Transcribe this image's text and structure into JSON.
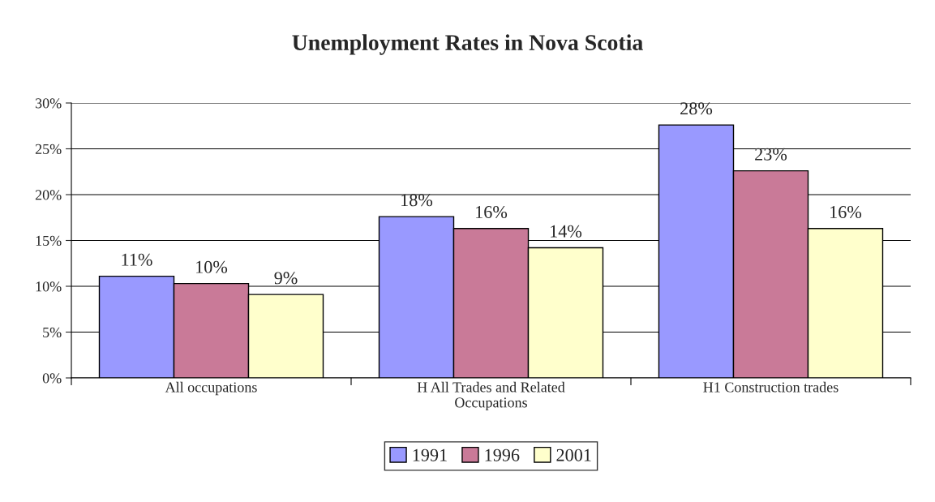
{
  "chart_data": {
    "type": "bar",
    "title": "Unemployment Rates in Nova Scotia",
    "categories": [
      "All occupations",
      "H All Trades and Related\nOccupations",
      "H1 Construction trades"
    ],
    "series": [
      {
        "name": "1991",
        "color": "#9999ff",
        "values": [
          11.1,
          17.6,
          27.6
        ],
        "value_labels": [
          "11%",
          "18%",
          "28%"
        ]
      },
      {
        "name": "1996",
        "color": "#c97a98",
        "values": [
          10.3,
          16.3,
          22.6
        ],
        "value_labels": [
          "10%",
          "16%",
          "23%"
        ]
      },
      {
        "name": "2001",
        "color": "#ffffcc",
        "values": [
          9.1,
          14.2,
          16.3
        ],
        "value_labels": [
          "9%",
          "14%",
          "16%"
        ]
      }
    ],
    "ylim": [
      0,
      30
    ],
    "yticks": [
      {
        "value": 0,
        "label": "0%"
      },
      {
        "value": 5,
        "label": "5%"
      },
      {
        "value": 10,
        "label": "10%"
      },
      {
        "value": 15,
        "label": "15%"
      },
      {
        "value": 20,
        "label": "20%"
      },
      {
        "value": 25,
        "label": "25%"
      },
      {
        "value": 30,
        "label": "30%"
      }
    ],
    "grid": "y",
    "legend": "bottom"
  }
}
